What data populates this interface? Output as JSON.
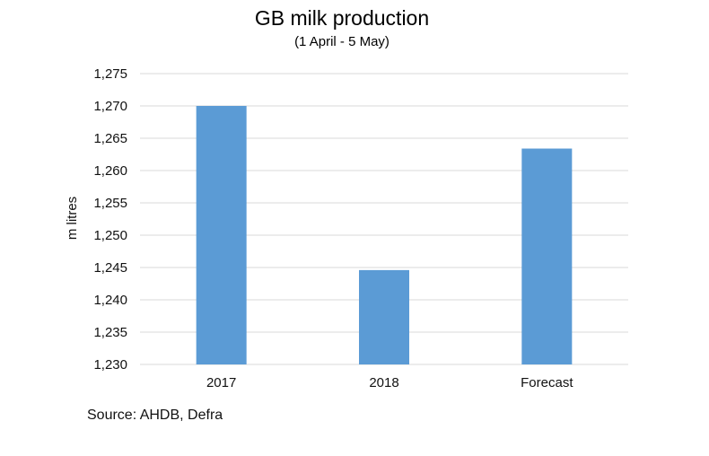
{
  "chart_data": {
    "type": "bar",
    "title": "GB milk production",
    "subtitle": "(1 April - 5 May)",
    "xlabel": "",
    "ylabel": "m litres",
    "categories": [
      "2017",
      "2018",
      "Forecast"
    ],
    "values": [
      1270,
      1244.6,
      1263.4
    ],
    "ylim": [
      1230,
      1275
    ],
    "ytick_step": 5,
    "ytick_labels": [
      "1,230",
      "1,235",
      "1,240",
      "1,245",
      "1,250",
      "1,255",
      "1,260",
      "1,265",
      "1,270",
      "1,275"
    ],
    "grid": true,
    "bar_color": "#5b9bd5",
    "source": "Source: AHDB, Defra"
  }
}
